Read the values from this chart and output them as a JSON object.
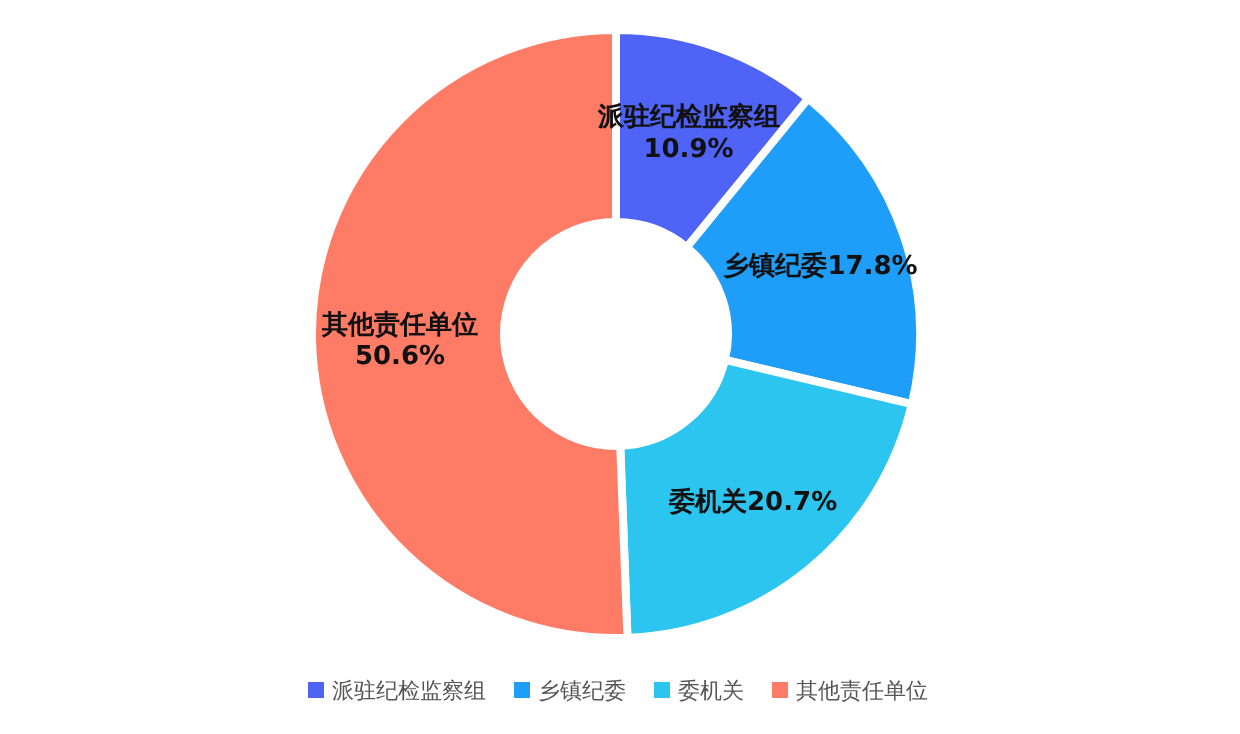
{
  "chart_data": {
    "type": "donut",
    "categories": [
      "派驻纪检监察组",
      "乡镇纪委",
      "委机关",
      "其他责任单位"
    ],
    "values": [
      10.9,
      17.8,
      20.7,
      50.6
    ],
    "value_labels": [
      "10.9%",
      "17.8%",
      "20.7%",
      "50.6%"
    ],
    "colors": [
      "#4f63f6",
      "#1f9ef9",
      "#2bc5ef",
      "#fe7b65"
    ],
    "legend": "bottom"
  }
}
